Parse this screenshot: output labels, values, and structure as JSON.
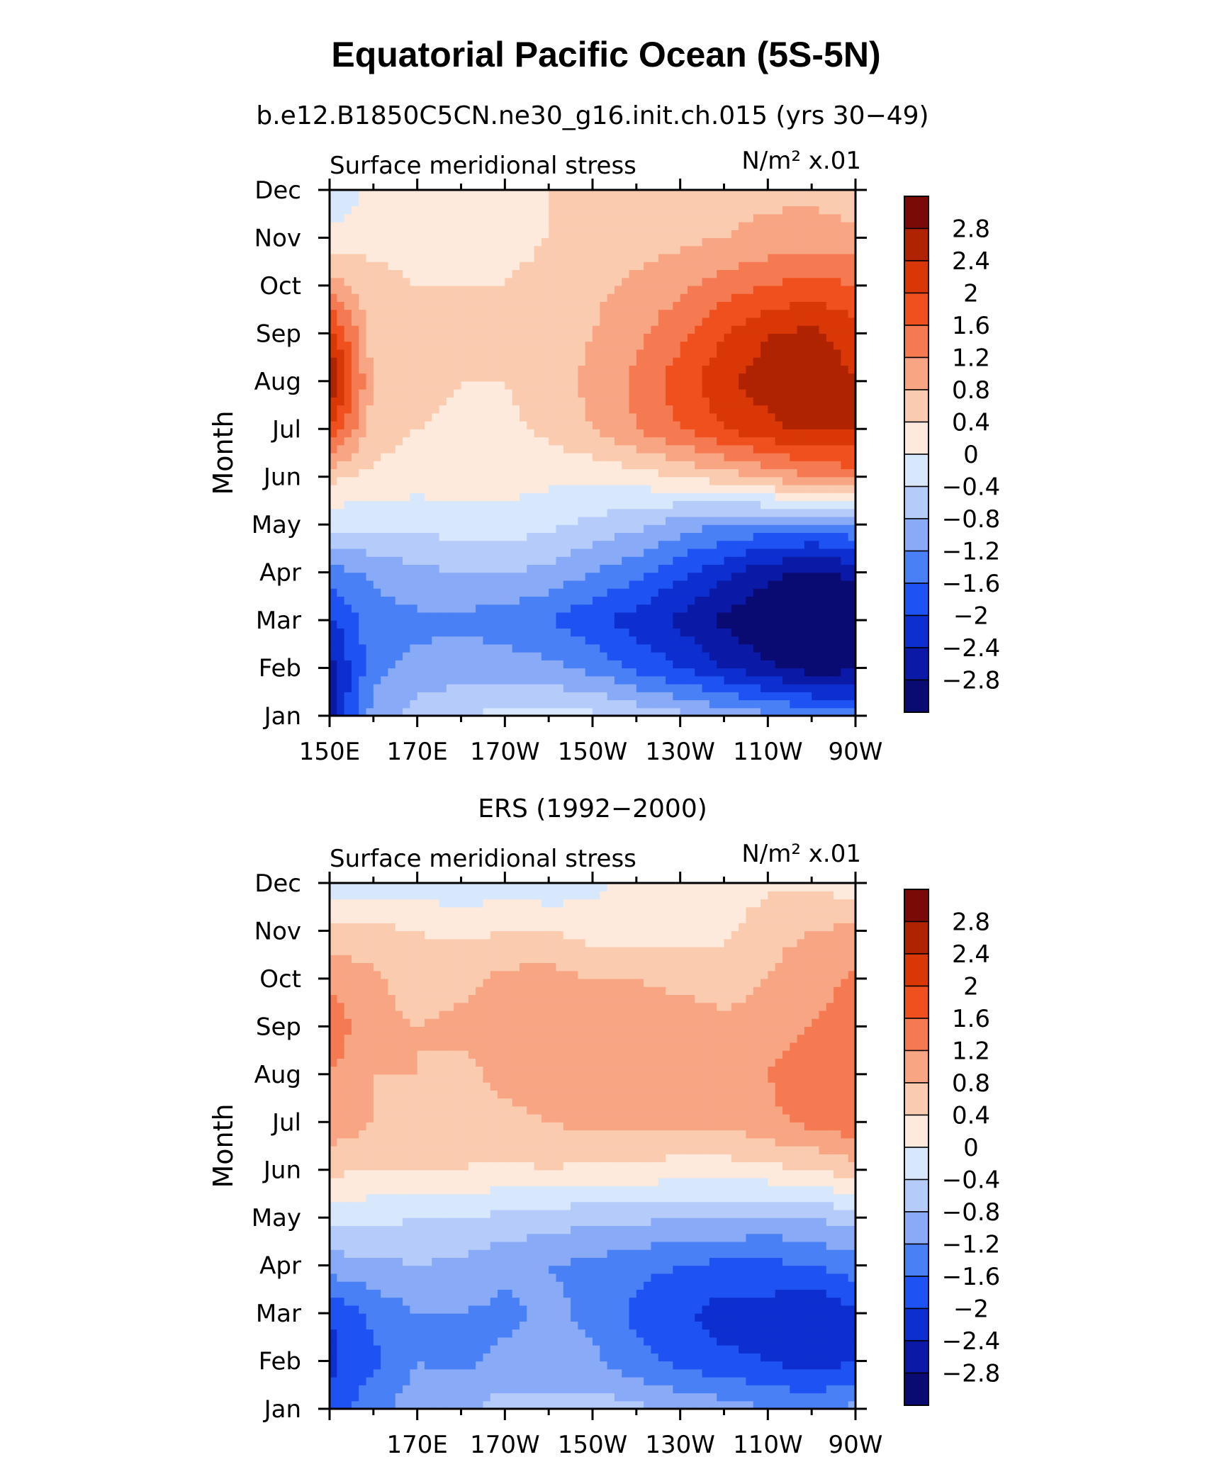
{
  "title": "Equatorial Pacific Ocean (5S-5N)",
  "colors": [
    "#0a0a73",
    "#0b1aa6",
    "#0d2fd0",
    "#1e52f2",
    "#4a80f5",
    "#88aaf7",
    "#b5cbfa",
    "#d7e7fc",
    "#fdeadc",
    "#fbcbb0",
    "#f8a584",
    "#f57a52",
    "#f0501e",
    "#d93806",
    "#b02300",
    "#7a0a05"
  ],
  "colorbar_labels": [
    "2.8",
    "2.4",
    "2",
    "1.6",
    "1.2",
    "0.8",
    "0.4",
    "0",
    "−0.4",
    "−0.8",
    "−1.2",
    "−1.6",
    "−2",
    "−2.4",
    "−2.8"
  ],
  "chart_data": [
    {
      "type": "heatmap",
      "title": "b.e12.B1850C5CN.ne30_g16.init.ch.015 (yrs 30−49)",
      "left_label": "Surface meridional stress",
      "right_label": "N/m² x.01",
      "ylabel": "Month",
      "xlabel": "",
      "x_ticks": [
        "150E",
        "170E",
        "170W",
        "150W",
        "130W",
        "110W",
        "90W"
      ],
      "x_tick_positions": [
        150,
        170,
        190,
        210,
        230,
        250,
        270
      ],
      "y_ticks": [
        "Jan",
        "Feb",
        "Mar",
        "Apr",
        "May",
        "Jun",
        "Jul",
        "Aug",
        "Sep",
        "Oct",
        "Nov",
        "Dec"
      ],
      "x_range": [
        150,
        270
      ],
      "x_columns": [
        150,
        160,
        170,
        180,
        190,
        200,
        210,
        220,
        230,
        240,
        250,
        260,
        270
      ],
      "levels": [
        -2.8,
        -2.4,
        -2,
        -1.6,
        -1.2,
        -0.8,
        -0.4,
        0,
        0.4,
        0.8,
        1.2,
        1.6,
        2,
        2.4,
        2.8
      ],
      "values": [
        [
          -2.6,
          -1.0,
          -0.6,
          -0.4,
          -0.3,
          -0.3,
          -0.3,
          -0.5,
          -0.7,
          -0.9,
          -1.1,
          -1.3,
          -1.4
        ],
        [
          -2.6,
          -1.3,
          -1.1,
          -1.0,
          -1.0,
          -1.1,
          -1.3,
          -1.7,
          -2.0,
          -2.4,
          -2.7,
          -3.0,
          -2.9
        ],
        [
          -2.1,
          -1.4,
          -1.3,
          -1.3,
          -1.4,
          -1.6,
          -1.9,
          -2.2,
          -2.5,
          -2.9,
          -3.2,
          -3.4,
          -3.2
        ],
        [
          -1.4,
          -1.1,
          -0.9,
          -0.8,
          -0.8,
          -0.9,
          -1.2,
          -1.5,
          -1.9,
          -2.3,
          -2.7,
          -2.9,
          -2.7
        ],
        [
          -0.3,
          -0.3,
          -0.3,
          -0.2,
          -0.2,
          -0.3,
          -0.5,
          -0.7,
          -1.0,
          -1.2,
          -1.3,
          -1.4,
          -1.2
        ],
        [
          0.5,
          0.3,
          0.2,
          0.2,
          0.2,
          0.1,
          0.1,
          0.2,
          0.4,
          0.6,
          0.9,
          1.2,
          1.4
        ],
        [
          2.0,
          0.6,
          0.4,
          0.3,
          0.3,
          0.5,
          0.8,
          1.2,
          1.6,
          2.0,
          2.3,
          2.5,
          2.4
        ],
        [
          2.9,
          0.7,
          0.5,
          0.4,
          0.4,
          0.6,
          0.9,
          1.3,
          1.8,
          2.3,
          2.6,
          2.7,
          2.4
        ],
        [
          2.2,
          0.6,
          0.5,
          0.4,
          0.4,
          0.5,
          0.8,
          1.1,
          1.5,
          2.0,
          2.4,
          2.5,
          2.2
        ],
        [
          1.0,
          0.5,
          0.4,
          0.4,
          0.4,
          0.5,
          0.7,
          0.9,
          1.1,
          1.4,
          1.6,
          1.8,
          1.6
        ],
        [
          0.2,
          0.3,
          0.3,
          0.3,
          0.3,
          0.4,
          0.5,
          0.6,
          0.7,
          0.8,
          0.9,
          1.0,
          0.9
        ],
        [
          -0.5,
          0.2,
          0.2,
          0.2,
          0.3,
          0.4,
          0.5,
          0.5,
          0.6,
          0.7,
          0.7,
          0.7,
          0.6
        ]
      ]
    },
    {
      "type": "heatmap",
      "title": "ERS (1992−2000)",
      "left_label": "Surface meridional stress",
      "right_label": "N/m² x.01",
      "ylabel": "Month",
      "xlabel": "",
      "x_ticks": [
        "170E",
        "170W",
        "150W",
        "130W",
        "110W",
        "90W"
      ],
      "x_tick_positions": [
        170,
        190,
        210,
        230,
        250,
        270
      ],
      "y_ticks": [
        "Jan",
        "Feb",
        "Mar",
        "Apr",
        "May",
        "Jun",
        "Jul",
        "Aug",
        "Sep",
        "Oct",
        "Nov",
        "Dec"
      ],
      "x_range": [
        150,
        270
      ],
      "x_columns": [
        150,
        160,
        170,
        180,
        190,
        200,
        210,
        220,
        230,
        240,
        250,
        260,
        270
      ],
      "levels": [
        -2.8,
        -2.4,
        -2,
        -1.6,
        -1.2,
        -0.8,
        -0.4,
        0,
        0.4,
        0.8,
        1.2,
        1.6,
        2,
        2.4,
        2.8
      ],
      "values": [
        [
          -1.9,
          -1.3,
          -1.0,
          -0.9,
          -0.6,
          -0.7,
          -0.6,
          -0.7,
          -0.9,
          -1.0,
          -1.2,
          -1.3,
          -1.1
        ],
        [
          -2.1,
          -1.7,
          -1.2,
          -1.3,
          -1.1,
          -1.1,
          -1.1,
          -1.5,
          -1.7,
          -1.9,
          -2.0,
          -2.2,
          -2.0
        ],
        [
          -2.0,
          -1.5,
          -1.2,
          -1.2,
          -1.3,
          -1.1,
          -1.3,
          -1.7,
          -1.9,
          -2.2,
          -2.2,
          -2.4,
          -2.1
        ],
        [
          -1.0,
          -0.9,
          -0.8,
          -0.9,
          -1.1,
          -1.2,
          -1.3,
          -1.5,
          -1.6,
          -1.7,
          -1.7,
          -1.6,
          -1.4
        ],
        [
          -0.3,
          -0.3,
          -0.4,
          -0.4,
          -0.5,
          -0.6,
          -0.7,
          -0.7,
          -0.8,
          -0.8,
          -0.9,
          -0.8,
          -0.6
        ],
        [
          0.5,
          0.4,
          0.4,
          0.4,
          0.3,
          0.4,
          0.3,
          0.3,
          0.2,
          0.2,
          0.3,
          0.4,
          0.6
        ],
        [
          1.1,
          0.8,
          0.7,
          0.6,
          0.7,
          0.8,
          0.9,
          0.9,
          0.9,
          0.9,
          1.1,
          1.3,
          1.5
        ],
        [
          1.2,
          0.8,
          0.8,
          0.7,
          0.9,
          1.0,
          1.0,
          1.0,
          1.0,
          1.0,
          1.2,
          1.5,
          1.6
        ],
        [
          1.5,
          0.9,
          0.8,
          0.9,
          1.0,
          1.0,
          1.0,
          1.0,
          1.0,
          0.9,
          1.0,
          1.2,
          1.4
        ],
        [
          1.1,
          0.9,
          0.6,
          0.7,
          0.9,
          1.0,
          0.8,
          0.8,
          0.7,
          0.6,
          0.8,
          1.0,
          1.3
        ],
        [
          0.5,
          0.5,
          0.4,
          0.3,
          0.4,
          0.4,
          0.2,
          0.2,
          0.3,
          0.3,
          0.7,
          0.8,
          0.9
        ],
        [
          -0.2,
          -0.2,
          -0.2,
          -0.3,
          -0.2,
          -0.3,
          -0.1,
          0.1,
          0.2,
          0.1,
          0.3,
          0.3,
          0.2
        ]
      ]
    }
  ]
}
